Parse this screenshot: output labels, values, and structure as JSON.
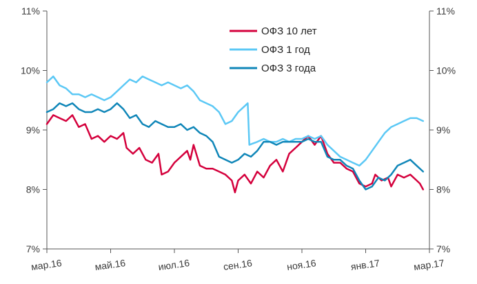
{
  "chart_data": {
    "type": "line",
    "title": "",
    "xlabel": "",
    "ylabel": "",
    "ylim": [
      7,
      11
    ],
    "xlim": [
      0,
      12
    ],
    "y_ticks_left": [
      "7%",
      "8%",
      "9%",
      "10%",
      "11%"
    ],
    "y_ticks_right": [
      "7%",
      "8%",
      "9%",
      "10%",
      "11%"
    ],
    "x_ticks": [
      {
        "x": 0,
        "label": "мар.16"
      },
      {
        "x": 2,
        "label": "май.16"
      },
      {
        "x": 4,
        "label": "июл.16"
      },
      {
        "x": 6,
        "label": "сен.16"
      },
      {
        "x": 8,
        "label": "ноя.16"
      },
      {
        "x": 10,
        "label": "янв.17"
      },
      {
        "x": 12,
        "label": "мар.17"
      }
    ],
    "grid": false,
    "legend_position": "top-center",
    "series": [
      {
        "name": "ОФЗ 10 лет",
        "color": "#d4003c",
        "points": [
          [
            0.0,
            9.1
          ],
          [
            0.2,
            9.25
          ],
          [
            0.4,
            9.2
          ],
          [
            0.6,
            9.15
          ],
          [
            0.8,
            9.25
          ],
          [
            1.0,
            9.05
          ],
          [
            1.2,
            9.1
          ],
          [
            1.4,
            8.85
          ],
          [
            1.6,
            8.9
          ],
          [
            1.8,
            8.8
          ],
          [
            2.0,
            8.9
          ],
          [
            2.2,
            8.85
          ],
          [
            2.4,
            8.95
          ],
          [
            2.5,
            8.7
          ],
          [
            2.7,
            8.6
          ],
          [
            2.9,
            8.7
          ],
          [
            3.1,
            8.5
          ],
          [
            3.3,
            8.45
          ],
          [
            3.5,
            8.6
          ],
          [
            3.6,
            8.25
          ],
          [
            3.8,
            8.3
          ],
          [
            4.0,
            8.45
          ],
          [
            4.2,
            8.55
          ],
          [
            4.4,
            8.65
          ],
          [
            4.5,
            8.5
          ],
          [
            4.6,
            8.75
          ],
          [
            4.8,
            8.4
          ],
          [
            5.0,
            8.35
          ],
          [
            5.2,
            8.35
          ],
          [
            5.4,
            8.3
          ],
          [
            5.6,
            8.25
          ],
          [
            5.8,
            8.15
          ],
          [
            5.9,
            7.95
          ],
          [
            6.0,
            8.15
          ],
          [
            6.2,
            8.25
          ],
          [
            6.4,
            8.1
          ],
          [
            6.6,
            8.3
          ],
          [
            6.8,
            8.2
          ],
          [
            7.0,
            8.4
          ],
          [
            7.2,
            8.5
          ],
          [
            7.4,
            8.3
          ],
          [
            7.6,
            8.6
          ],
          [
            7.8,
            8.7
          ],
          [
            8.0,
            8.8
          ],
          [
            8.2,
            8.9
          ],
          [
            8.4,
            8.75
          ],
          [
            8.6,
            8.9
          ],
          [
            8.8,
            8.6
          ],
          [
            9.0,
            8.45
          ],
          [
            9.2,
            8.45
          ],
          [
            9.4,
            8.35
          ],
          [
            9.6,
            8.3
          ],
          [
            9.8,
            8.1
          ],
          [
            10.0,
            8.05
          ],
          [
            10.2,
            8.1
          ],
          [
            10.3,
            8.25
          ],
          [
            10.5,
            8.15
          ],
          [
            10.7,
            8.2
          ],
          [
            10.8,
            8.05
          ],
          [
            11.0,
            8.25
          ],
          [
            11.2,
            8.2
          ],
          [
            11.4,
            8.25
          ],
          [
            11.6,
            8.15
          ],
          [
            11.7,
            8.1
          ],
          [
            11.8,
            8.0
          ]
        ]
      },
      {
        "name": "ОФЗ 1 год",
        "color": "#5bc8f5",
        "points": [
          [
            0.0,
            9.8
          ],
          [
            0.2,
            9.9
          ],
          [
            0.4,
            9.75
          ],
          [
            0.6,
            9.7
          ],
          [
            0.8,
            9.6
          ],
          [
            1.0,
            9.6
          ],
          [
            1.2,
            9.55
          ],
          [
            1.4,
            9.6
          ],
          [
            1.6,
            9.55
          ],
          [
            1.8,
            9.5
          ],
          [
            2.0,
            9.55
          ],
          [
            2.2,
            9.65
          ],
          [
            2.4,
            9.75
          ],
          [
            2.6,
            9.85
          ],
          [
            2.8,
            9.8
          ],
          [
            3.0,
            9.9
          ],
          [
            3.2,
            9.85
          ],
          [
            3.4,
            9.8
          ],
          [
            3.6,
            9.75
          ],
          [
            3.8,
            9.8
          ],
          [
            4.0,
            9.75
          ],
          [
            4.2,
            9.7
          ],
          [
            4.4,
            9.75
          ],
          [
            4.6,
            9.65
          ],
          [
            4.8,
            9.5
          ],
          [
            5.0,
            9.45
          ],
          [
            5.2,
            9.4
          ],
          [
            5.4,
            9.3
          ],
          [
            5.6,
            9.1
          ],
          [
            5.8,
            9.15
          ],
          [
            6.0,
            9.3
          ],
          [
            6.2,
            9.4
          ],
          [
            6.3,
            9.45
          ],
          [
            6.35,
            8.75
          ],
          [
            6.6,
            8.8
          ],
          [
            6.8,
            8.85
          ],
          [
            7.0,
            8.8
          ],
          [
            7.2,
            8.8
          ],
          [
            7.4,
            8.85
          ],
          [
            7.6,
            8.8
          ],
          [
            7.8,
            8.85
          ],
          [
            8.0,
            8.85
          ],
          [
            8.2,
            8.9
          ],
          [
            8.4,
            8.85
          ],
          [
            8.6,
            8.9
          ],
          [
            8.8,
            8.75
          ],
          [
            9.0,
            8.65
          ],
          [
            9.2,
            8.55
          ],
          [
            9.4,
            8.5
          ],
          [
            9.6,
            8.45
          ],
          [
            9.8,
            8.4
          ],
          [
            10.0,
            8.5
          ],
          [
            10.2,
            8.65
          ],
          [
            10.4,
            8.8
          ],
          [
            10.6,
            8.95
          ],
          [
            10.8,
            9.05
          ],
          [
            11.0,
            9.1
          ],
          [
            11.2,
            9.15
          ],
          [
            11.4,
            9.2
          ],
          [
            11.6,
            9.2
          ],
          [
            11.8,
            9.15
          ]
        ]
      },
      {
        "name": "ОФЗ 3 года",
        "color": "#0f86b8",
        "points": [
          [
            0.0,
            9.3
          ],
          [
            0.2,
            9.35
          ],
          [
            0.4,
            9.45
          ],
          [
            0.6,
            9.4
          ],
          [
            0.8,
            9.45
          ],
          [
            1.0,
            9.35
          ],
          [
            1.2,
            9.3
          ],
          [
            1.4,
            9.3
          ],
          [
            1.6,
            9.35
          ],
          [
            1.8,
            9.3
          ],
          [
            2.0,
            9.35
          ],
          [
            2.2,
            9.45
          ],
          [
            2.4,
            9.35
          ],
          [
            2.6,
            9.2
          ],
          [
            2.8,
            9.25
          ],
          [
            3.0,
            9.1
          ],
          [
            3.2,
            9.05
          ],
          [
            3.4,
            9.15
          ],
          [
            3.6,
            9.1
          ],
          [
            3.8,
            9.05
          ],
          [
            4.0,
            9.05
          ],
          [
            4.2,
            9.1
          ],
          [
            4.4,
            9.0
          ],
          [
            4.6,
            9.05
          ],
          [
            4.8,
            8.95
          ],
          [
            5.0,
            8.9
          ],
          [
            5.2,
            8.8
          ],
          [
            5.4,
            8.55
          ],
          [
            5.6,
            8.5
          ],
          [
            5.8,
            8.45
          ],
          [
            6.0,
            8.5
          ],
          [
            6.2,
            8.6
          ],
          [
            6.4,
            8.55
          ],
          [
            6.6,
            8.65
          ],
          [
            6.8,
            8.8
          ],
          [
            7.0,
            8.8
          ],
          [
            7.2,
            8.75
          ],
          [
            7.4,
            8.8
          ],
          [
            7.6,
            8.8
          ],
          [
            7.8,
            8.8
          ],
          [
            8.0,
            8.8
          ],
          [
            8.2,
            8.85
          ],
          [
            8.4,
            8.8
          ],
          [
            8.6,
            8.8
          ],
          [
            8.8,
            8.55
          ],
          [
            9.0,
            8.5
          ],
          [
            9.2,
            8.5
          ],
          [
            9.4,
            8.4
          ],
          [
            9.6,
            8.35
          ],
          [
            9.8,
            8.15
          ],
          [
            10.0,
            8.0
          ],
          [
            10.2,
            8.05
          ],
          [
            10.4,
            8.2
          ],
          [
            10.6,
            8.15
          ],
          [
            10.8,
            8.25
          ],
          [
            11.0,
            8.4
          ],
          [
            11.2,
            8.45
          ],
          [
            11.4,
            8.5
          ],
          [
            11.6,
            8.4
          ],
          [
            11.8,
            8.3
          ]
        ]
      }
    ]
  }
}
